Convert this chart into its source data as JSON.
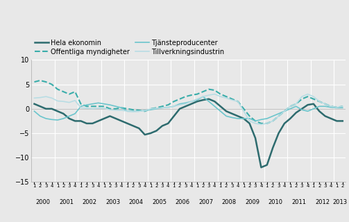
{
  "legend_labels": [
    "Hela ekonomin",
    "Offentliga myndigheter",
    "Tjänsteproducenter",
    "Tillverkningsindustrin"
  ],
  "legend_colors": [
    "#2d6b6e",
    "#3aadaa",
    "#6bc5cc",
    "#b8dde4"
  ],
  "legend_linestyles": [
    "solid",
    "dashed",
    "solid",
    "solid"
  ],
  "legend_linewidths": [
    1.8,
    1.5,
    1.2,
    1.2
  ],
  "ylim": [
    -15,
    10
  ],
  "yticks": [
    -15,
    -10,
    -5,
    0,
    5,
    10
  ],
  "background_color": "#e8e8e8",
  "plot_bg_color": "#e8e8e8",
  "hela_ekonomin": [
    2.2,
    2.3,
    2.5,
    2.2,
    1.6,
    1.5,
    1.3,
    1.7,
    0.2,
    0.1,
    0.0,
    0.1,
    0.1,
    -0.2,
    -0.3,
    -0.3,
    -0.5,
    -0.6,
    -0.5,
    -0.4,
    0.0,
    0.1,
    0.2,
    0.3,
    0.5,
    0.8,
    1.0,
    1.5,
    2.0,
    2.5,
    2.8,
    3.0,
    2.5,
    2.2,
    1.8,
    1.5,
    -0.5,
    -2.5,
    -3.0,
    -3.2,
    -3.0,
    -2.5,
    -1.5,
    -0.5,
    0.5,
    1.0,
    2.5,
    3.0,
    2.5,
    1.5,
    1.0,
    0.5,
    0.3,
    0.5,
    0.8,
    1.0,
    0.8,
    1.0
  ],
  "offentliga_myndigheter": [
    -0.5,
    -1.5,
    -2.0,
    -2.2,
    -2.3,
    -2.0,
    -1.5,
    -1.0,
    0.5,
    0.8,
    1.0,
    1.2,
    1.0,
    0.8,
    0.5,
    0.2,
    -0.5,
    -0.5,
    -0.5,
    -0.3,
    -0.2,
    0.0,
    0.2,
    0.3,
    0.5,
    1.0,
    1.2,
    1.5,
    1.8,
    2.5,
    1.5,
    0.5,
    -0.5,
    -1.5,
    -1.8,
    -2.0,
    -2.0,
    -2.0,
    -2.5,
    -2.2,
    -2.0,
    -1.5,
    -1.0,
    -0.5,
    0.0,
    0.5,
    -0.2,
    -0.5,
    0.0,
    0.5,
    0.5,
    0.3,
    0.2,
    0.2,
    0.2,
    0.3,
    0.2,
    0.2
  ],
  "tjansteproducenter": [
    5.5,
    5.8,
    5.5,
    5.0,
    4.0,
    3.5,
    3.0,
    3.5,
    1.0,
    0.5,
    0.5,
    0.5,
    0.5,
    0.0,
    0.0,
    0.2,
    0.0,
    -0.2,
    -0.3,
    -0.5,
    0.0,
    0.2,
    0.5,
    0.8,
    1.5,
    2.0,
    2.5,
    2.8,
    3.0,
    3.5,
    4.0,
    3.8,
    3.0,
    2.5,
    2.0,
    1.5,
    0.0,
    -1.5,
    -2.5,
    -3.0,
    -3.0,
    -2.5,
    -1.5,
    -0.5,
    0.5,
    1.0,
    2.0,
    2.5,
    2.0,
    1.5,
    1.0,
    0.5,
    0.3,
    0.5,
    0.8,
    1.0,
    1.0,
    1.5
  ],
  "tillverkningsindustrin": [
    1.0,
    0.5,
    0.0,
    0.0,
    -0.5,
    -1.0,
    -2.0,
    -2.5,
    -2.5,
    -3.0,
    -3.0,
    -2.5,
    -2.0,
    -1.5,
    -2.0,
    -2.5,
    -3.0,
    -3.5,
    -4.0,
    -5.3,
    -5.0,
    -4.5,
    -3.5,
    -3.0,
    -1.5,
    0.0,
    0.5,
    1.0,
    1.5,
    1.8,
    2.0,
    1.5,
    0.5,
    -0.5,
    -1.0,
    -1.5,
    -2.0,
    -3.0,
    -6.0,
    -12.0,
    -11.5,
    -8.0,
    -5.0,
    -3.0,
    -2.0,
    -0.8,
    0.0,
    0.8,
    1.0,
    -0.5,
    -1.5,
    -2.0,
    -2.5,
    -2.5,
    -2.8,
    -3.0,
    -2.8,
    -2.5
  ],
  "years": [
    2000,
    2001,
    2002,
    2003,
    2004,
    2005,
    2006,
    2007,
    2008,
    2009,
    2010,
    2011,
    2012,
    2013
  ],
  "quarters_per_year": [
    4,
    4,
    4,
    4,
    4,
    4,
    4,
    4,
    4,
    4,
    4,
    4,
    4,
    2
  ]
}
